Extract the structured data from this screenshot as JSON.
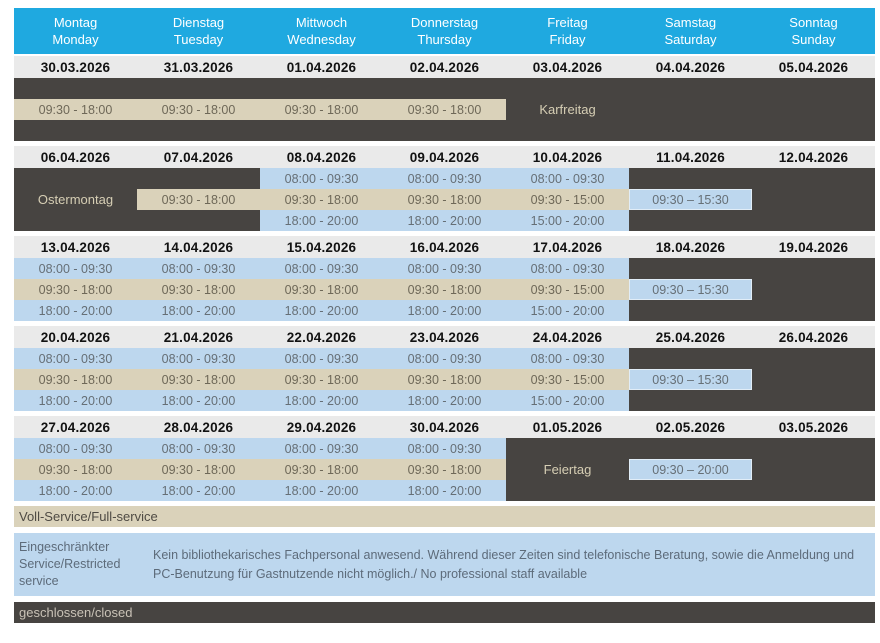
{
  "header": {
    "days": [
      {
        "de": "Montag",
        "en": "Monday"
      },
      {
        "de": "Dienstag",
        "en": "Tuesday"
      },
      {
        "de": "Mittwoch",
        "en": "Wednesday"
      },
      {
        "de": "Donnerstag",
        "en": "Thursday"
      },
      {
        "de": "Freitag",
        "en": "Friday"
      },
      {
        "de": "Samstag",
        "en": "Saturday"
      },
      {
        "de": "Sonntag",
        "en": "Sunday"
      }
    ]
  },
  "weeks": [
    {
      "dates": [
        "30.03.2026",
        "31.03.2026",
        "01.04.2026",
        "02.04.2026",
        "03.04.2026",
        "04.04.2026",
        "05.04.2026"
      ],
      "days": [
        [
          {
            "kind": "closed"
          },
          {
            "kind": "full",
            "text": "09:30 - 18:00"
          },
          {
            "kind": "closed"
          }
        ],
        [
          {
            "kind": "closed"
          },
          {
            "kind": "full",
            "text": "09:30 - 18:00"
          },
          {
            "kind": "closed"
          }
        ],
        [
          {
            "kind": "closed"
          },
          {
            "kind": "full",
            "text": "09:30 - 18:00"
          },
          {
            "kind": "closed"
          }
        ],
        [
          {
            "kind": "closed"
          },
          {
            "kind": "full",
            "text": "09:30 - 18:00"
          },
          {
            "kind": "closed"
          }
        ],
        [
          {
            "kind": "closed"
          },
          {
            "kind": "closed",
            "text": "Karfreitag"
          },
          {
            "kind": "closed"
          }
        ],
        [
          {
            "kind": "closed"
          },
          {
            "kind": "closed"
          },
          {
            "kind": "closed"
          }
        ],
        [
          {
            "kind": "closed"
          },
          {
            "kind": "closed"
          },
          {
            "kind": "closed"
          }
        ]
      ]
    },
    {
      "dates": [
        "06.04.2026",
        "07.04.2026",
        "08.04.2026",
        "09.04.2026",
        "10.04.2026",
        "11.04.2026",
        "12.04.2026"
      ],
      "days": [
        [
          {
            "kind": "closed"
          },
          {
            "kind": "closed",
            "text": "Ostermontag"
          },
          {
            "kind": "closed"
          }
        ],
        [
          {
            "kind": "closed"
          },
          {
            "kind": "full",
            "text": "09:30 - 18:00"
          },
          {
            "kind": "closed"
          }
        ],
        [
          {
            "kind": "restricted",
            "text": "08:00 - 09:30"
          },
          {
            "kind": "full",
            "text": "09:30 - 18:00"
          },
          {
            "kind": "restricted",
            "text": "18:00 - 20:00"
          }
        ],
        [
          {
            "kind": "restricted",
            "text": "08:00 - 09:30"
          },
          {
            "kind": "full",
            "text": "09:30 - 18:00"
          },
          {
            "kind": "restricted",
            "text": "18:00 - 20:00"
          }
        ],
        [
          {
            "kind": "restricted",
            "text": "08:00 - 09:30"
          },
          {
            "kind": "full",
            "text": "09:30 - 15:00"
          },
          {
            "kind": "restricted",
            "text": "15:00 - 20:00"
          }
        ],
        [
          {
            "kind": "closed"
          },
          {
            "kind": "restricted",
            "text": "09:30 – 15:30",
            "boxed": true
          },
          {
            "kind": "closed"
          }
        ],
        [
          {
            "kind": "closed"
          },
          {
            "kind": "closed"
          },
          {
            "kind": "closed"
          }
        ]
      ]
    },
    {
      "dates": [
        "13.04.2026",
        "14.04.2026",
        "15.04.2026",
        "16.04.2026",
        "17.04.2026",
        "18.04.2026",
        "19.04.2026"
      ],
      "days": [
        [
          {
            "kind": "restricted",
            "text": "08:00 - 09:30"
          },
          {
            "kind": "full",
            "text": "09:30 - 18:00"
          },
          {
            "kind": "restricted",
            "text": "18:00 - 20:00"
          }
        ],
        [
          {
            "kind": "restricted",
            "text": "08:00 - 09:30"
          },
          {
            "kind": "full",
            "text": "09:30 - 18:00"
          },
          {
            "kind": "restricted",
            "text": "18:00 - 20:00"
          }
        ],
        [
          {
            "kind": "restricted",
            "text": "08:00 - 09:30"
          },
          {
            "kind": "full",
            "text": "09:30 - 18:00"
          },
          {
            "kind": "restricted",
            "text": "18:00 - 20:00"
          }
        ],
        [
          {
            "kind": "restricted",
            "text": "08:00 - 09:30"
          },
          {
            "kind": "full",
            "text": "09:30 - 18:00"
          },
          {
            "kind": "restricted",
            "text": "18:00 - 20:00"
          }
        ],
        [
          {
            "kind": "restricted",
            "text": "08:00 - 09:30"
          },
          {
            "kind": "full",
            "text": "09:30 - 15:00"
          },
          {
            "kind": "restricted",
            "text": "15:00 - 20:00"
          }
        ],
        [
          {
            "kind": "closed"
          },
          {
            "kind": "restricted",
            "text": "09:30 – 15:30",
            "boxed": true
          },
          {
            "kind": "closed"
          }
        ],
        [
          {
            "kind": "closed"
          },
          {
            "kind": "closed"
          },
          {
            "kind": "closed"
          }
        ]
      ]
    },
    {
      "dates": [
        "20.04.2026",
        "21.04.2026",
        "22.04.2026",
        "23.04.2026",
        "24.04.2026",
        "25.04.2026",
        "26.04.2026"
      ],
      "days": [
        [
          {
            "kind": "restricted",
            "text": "08:00 - 09:30"
          },
          {
            "kind": "full",
            "text": "09:30 - 18:00"
          },
          {
            "kind": "restricted",
            "text": "18:00 - 20:00"
          }
        ],
        [
          {
            "kind": "restricted",
            "text": "08:00 - 09:30"
          },
          {
            "kind": "full",
            "text": "09:30 - 18:00"
          },
          {
            "kind": "restricted",
            "text": "18:00 - 20:00"
          }
        ],
        [
          {
            "kind": "restricted",
            "text": "08:00 - 09:30"
          },
          {
            "kind": "full",
            "text": "09:30 - 18:00"
          },
          {
            "kind": "restricted",
            "text": "18:00 - 20:00"
          }
        ],
        [
          {
            "kind": "restricted",
            "text": "08:00 - 09:30"
          },
          {
            "kind": "full",
            "text": "09:30 - 18:00"
          },
          {
            "kind": "restricted",
            "text": "18:00 - 20:00"
          }
        ],
        [
          {
            "kind": "restricted",
            "text": "08:00 - 09:30"
          },
          {
            "kind": "full",
            "text": "09:30 - 15:00"
          },
          {
            "kind": "restricted",
            "text": "15:00 - 20:00"
          }
        ],
        [
          {
            "kind": "closed"
          },
          {
            "kind": "restricted",
            "text": "09:30 – 15:30",
            "boxed": true
          },
          {
            "kind": "closed"
          }
        ],
        [
          {
            "kind": "closed"
          },
          {
            "kind": "closed"
          },
          {
            "kind": "closed"
          }
        ]
      ]
    },
    {
      "dates": [
        "27.04.2026",
        "28.04.2026",
        "29.04.2026",
        "30.04.2026",
        "01.05.2026",
        "02.05.2026",
        "03.05.2026"
      ],
      "days": [
        [
          {
            "kind": "restricted",
            "text": "08:00 - 09:30"
          },
          {
            "kind": "full",
            "text": "09:30 - 18:00"
          },
          {
            "kind": "restricted",
            "text": "18:00 - 20:00"
          }
        ],
        [
          {
            "kind": "restricted",
            "text": "08:00 - 09:30"
          },
          {
            "kind": "full",
            "text": "09:30 - 18:00"
          },
          {
            "kind": "restricted",
            "text": "18:00 - 20:00"
          }
        ],
        [
          {
            "kind": "restricted",
            "text": "08:00 - 09:30"
          },
          {
            "kind": "full",
            "text": "09:30 - 18:00"
          },
          {
            "kind": "restricted",
            "text": "18:00 - 20:00"
          }
        ],
        [
          {
            "kind": "restricted",
            "text": "08:00 - 09:30"
          },
          {
            "kind": "full",
            "text": "09:30 - 18:00"
          },
          {
            "kind": "restricted",
            "text": "18:00 - 20:00"
          }
        ],
        [
          {
            "kind": "closed"
          },
          {
            "kind": "closed",
            "text": "Feiertag"
          },
          {
            "kind": "closed"
          }
        ],
        [
          {
            "kind": "closed"
          },
          {
            "kind": "restricted",
            "text": "09:30 – 20:00",
            "boxed": true
          },
          {
            "kind": "closed"
          }
        ],
        [
          {
            "kind": "closed"
          },
          {
            "kind": "closed"
          },
          {
            "kind": "closed"
          }
        ]
      ]
    }
  ],
  "legend": {
    "full": "Voll-Service/Full-service",
    "restricted_label": "Eingeschränkter Service/Restricted service",
    "restricted_note": "Kein bibliothekarisches Fachpersonal anwesend. Während dieser Zeiten sind telefonische Beratung, sowie die Anmeldung und PC-Benutzung für Gastnutzende nicht möglich./ No professional staff available",
    "closed": "geschlossen/closed"
  },
  "colors": {
    "header_bg": "#1FA9E0",
    "header_text": "#FFFFFF",
    "date_row_bg": "#EAEAEA",
    "full_service_bg": "#DAD2BA",
    "restricted_bg": "#BDD7EE",
    "closed_bg": "#474441",
    "holiday_label_text": "#D6CEB4"
  }
}
